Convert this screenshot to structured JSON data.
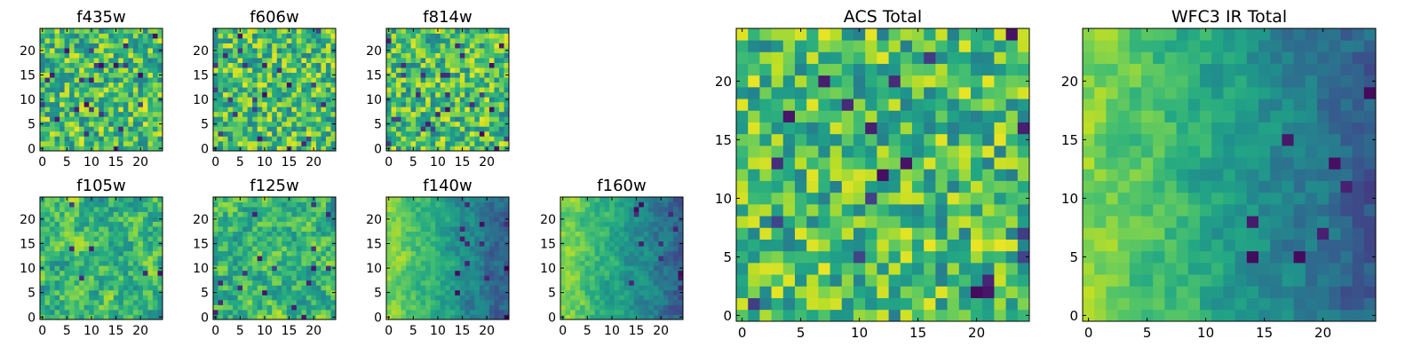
{
  "chart_data": {
    "type": "heatmap",
    "colormap": "viridis",
    "grid_shape": [
      25,
      25
    ],
    "panels": [
      {
        "title": "f435w",
        "layout": "small",
        "row": 0,
        "col": 0,
        "xticks": [
          0,
          5,
          10,
          15,
          20
        ],
        "yticks": [
          0,
          5,
          10,
          15,
          20
        ],
        "xlim": [
          0,
          25
        ],
        "ylim": [
          0,
          25
        ],
        "texture": "noise",
        "seed": 11
      },
      {
        "title": "f606w",
        "layout": "small",
        "row": 0,
        "col": 1,
        "xticks": [
          0,
          5,
          10,
          15,
          20
        ],
        "yticks": [
          0,
          5,
          10,
          15,
          20
        ],
        "xlim": [
          0,
          25
        ],
        "ylim": [
          0,
          25
        ],
        "texture": "noise",
        "seed": 23
      },
      {
        "title": "f814w",
        "layout": "small",
        "row": 0,
        "col": 2,
        "xticks": [
          0,
          5,
          10,
          15,
          20
        ],
        "yticks": [
          0,
          5,
          10,
          15,
          20
        ],
        "xlim": [
          0,
          25
        ],
        "ylim": [
          0,
          25
        ],
        "texture": "noise",
        "seed": 37
      },
      {
        "title": "f105w",
        "layout": "small",
        "row": 1,
        "col": 0,
        "xticks": [
          0,
          5,
          10,
          15,
          20
        ],
        "yticks": [
          0,
          5,
          10,
          15,
          20
        ],
        "xlim": [
          0,
          25
        ],
        "ylim": [
          0,
          25
        ],
        "texture": "smooth",
        "seed": 41
      },
      {
        "title": "f125w",
        "layout": "small",
        "row": 1,
        "col": 1,
        "xticks": [
          0,
          5,
          10,
          15,
          20
        ],
        "yticks": [
          0,
          5,
          10,
          15,
          20
        ],
        "xlim": [
          0,
          25
        ],
        "ylim": [
          0,
          25
        ],
        "texture": "smooth",
        "seed": 53
      },
      {
        "title": "f140w",
        "layout": "small",
        "row": 1,
        "col": 2,
        "xticks": [
          0,
          5,
          10,
          15,
          20
        ],
        "yticks": [
          0,
          5,
          10,
          15,
          20
        ],
        "xlim": [
          0,
          25
        ],
        "ylim": [
          0,
          25
        ],
        "texture": "gradient",
        "seed": 67
      },
      {
        "title": "f160w",
        "layout": "small",
        "row": 1,
        "col": 3,
        "xticks": [
          0,
          5,
          10,
          15,
          20
        ],
        "yticks": [
          0,
          5,
          10,
          15,
          20
        ],
        "xlim": [
          0,
          25
        ],
        "ylim": [
          0,
          25
        ],
        "texture": "gradient",
        "seed": 79
      },
      {
        "title": "ACS Total",
        "layout": "large",
        "col": 0,
        "xticks": [
          0,
          5,
          10,
          15,
          20
        ],
        "yticks": [
          0,
          5,
          10,
          15,
          20
        ],
        "xlim": [
          0,
          25
        ],
        "ylim": [
          0,
          25
        ],
        "texture": "noise",
        "seed": 97
      },
      {
        "title": "WFC3 IR Total",
        "layout": "large",
        "col": 1,
        "xticks": [
          0,
          5,
          10,
          15,
          20
        ],
        "yticks": [
          0,
          5,
          10,
          15,
          20
        ],
        "xlim": [
          0,
          25
        ],
        "ylim": [
          0,
          25
        ],
        "texture": "gradient",
        "seed": 113
      }
    ]
  }
}
